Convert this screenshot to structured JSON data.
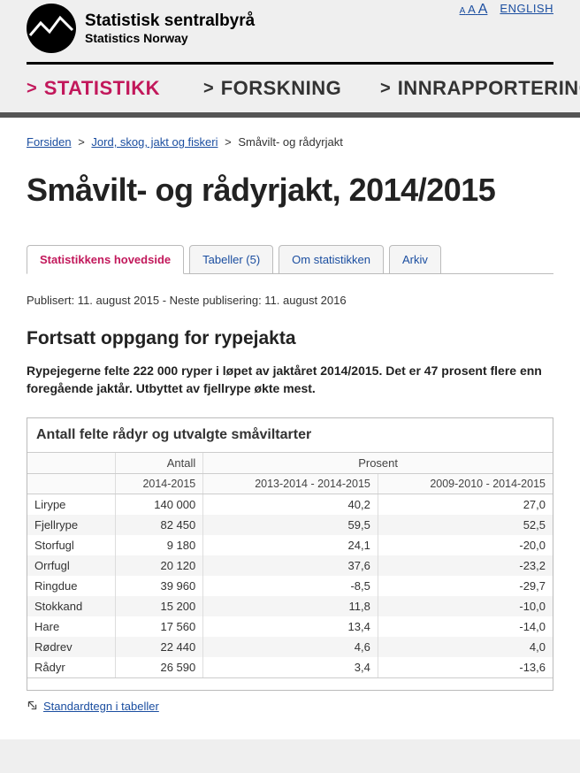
{
  "header": {
    "org_name_no": "Statistisk sentralbyrå",
    "org_name_en": "Statistics Norway",
    "font_size_label": "A A A",
    "lang_link": "ENGLISH"
  },
  "nav": {
    "items": [
      {
        "label": "STATISTIKK",
        "active": true
      },
      {
        "label": "FORSKNING",
        "active": false
      },
      {
        "label": "INNRAPPORTERING",
        "active": false
      }
    ]
  },
  "breadcrumb": {
    "home": "Forsiden",
    "mid": "Jord, skog, jakt og fiskeri",
    "leaf": "Småvilt- og rådyrjakt"
  },
  "page_title": "Småvilt- og rådyrjakt, 2014/2015",
  "tabs": [
    {
      "label": "Statistikkens hovedside",
      "active": true
    },
    {
      "label": "Tabeller (5)",
      "active": false
    },
    {
      "label": "Om statistikken",
      "active": false
    },
    {
      "label": "Arkiv",
      "active": false
    }
  ],
  "meta_line": "Publisert: 11. august 2015 - Neste publisering: 11. august 2016",
  "section_title": "Fortsatt oppgang for rypejakta",
  "lede": "Rypejegerne felte 222 000 ryper i løpet av jaktåret 2014/2015. Det er 47 prosent flere enn foregående jaktår. Utbyttet av fjellrype økte mest.",
  "table": {
    "title": "Antall felte rådyr og utvalgte småviltarter",
    "head_group": {
      "col1": "",
      "antall": "Antall",
      "prosent": "Prosent"
    },
    "head_sub": {
      "c1": "",
      "c2": "2014-2015",
      "c3": "2013-2014 - 2014-2015",
      "c4": "2009-2010 - 2014-2015"
    },
    "rows": [
      {
        "name": "Lirype",
        "v1": "140 000",
        "v2": "40,2",
        "v3": "27,0"
      },
      {
        "name": "Fjellrype",
        "v1": "82 450",
        "v2": "59,5",
        "v3": "52,5"
      },
      {
        "name": "Storfugl",
        "v1": "9 180",
        "v2": "24,1",
        "v3": "-20,0"
      },
      {
        "name": "Orrfugl",
        "v1": "20 120",
        "v2": "37,6",
        "v3": "-23,2"
      },
      {
        "name": "Ringdue",
        "v1": "39 960",
        "v2": "-8,5",
        "v3": "-29,7"
      },
      {
        "name": "Stokkand",
        "v1": "15 200",
        "v2": "11,8",
        "v3": "-10,0"
      },
      {
        "name": "Hare",
        "v1": "17 560",
        "v2": "13,4",
        "v3": "-14,0"
      },
      {
        "name": "Rødrev",
        "v1": "22 440",
        "v2": "4,6",
        "v3": "4,0"
      },
      {
        "name": "Rådyr",
        "v1": "26 590",
        "v2": "3,4",
        "v3": "-13,6"
      }
    ],
    "column_widths": [
      "100px",
      "100px",
      "200px",
      "200px"
    ]
  },
  "standard_link": "Standardtegn i tabeller",
  "colors": {
    "accent": "#c2185b",
    "link": "#1b4ea0",
    "border": "#bbb",
    "nav_divider": "#555"
  }
}
